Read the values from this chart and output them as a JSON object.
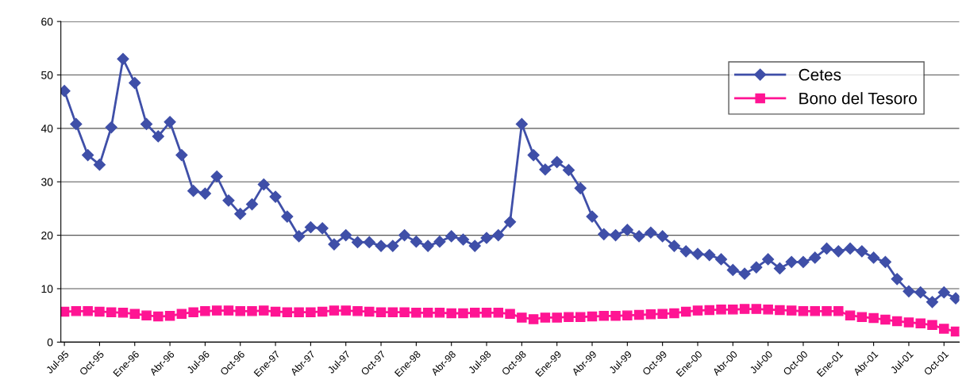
{
  "chart_data": {
    "type": "line",
    "categories": [
      "Jul-95",
      null,
      null,
      "Oct-95",
      null,
      null,
      "Ene-96",
      null,
      null,
      "Abr-96",
      null,
      null,
      "Jul-96",
      null,
      null,
      "Oct-96",
      null,
      null,
      "Ene-97",
      null,
      null,
      "Abr-97",
      null,
      null,
      "Jul-97",
      null,
      null,
      "Oct-97",
      null,
      null,
      "Ene-98",
      null,
      null,
      "Abr-98",
      null,
      null,
      "Jul-98",
      null,
      null,
      "Oct-98",
      null,
      null,
      "Ene-99",
      null,
      null,
      "Abr-99",
      null,
      null,
      "Jul-99",
      null,
      null,
      "Oct-99",
      null,
      null,
      "Ene-00",
      null,
      null,
      "Abr-00",
      null,
      null,
      "Jul-00",
      null,
      null,
      "Oct-00",
      null,
      null,
      "Ene-01",
      null,
      null,
      "Abr-01",
      null,
      null,
      "Jul-01",
      null,
      null,
      "Oct-01",
      null
    ],
    "series": [
      {
        "name": "Cetes",
        "color": "#3f4fa8",
        "marker": "diamond",
        "values": [
          47,
          40.8,
          35,
          33.2,
          40.2,
          53,
          48.5,
          40.8,
          38.5,
          41.2,
          35,
          28.3,
          27.8,
          31,
          26.5,
          24,
          25.8,
          29.5,
          27.2,
          23.5,
          19.8,
          21.5,
          21.3,
          18.3,
          20,
          18.7,
          18.7,
          18,
          18,
          20,
          18.8,
          18,
          18.8,
          19.8,
          19.2,
          18,
          19.5,
          20,
          22.5,
          40.8,
          35,
          32.3,
          33.7,
          32.2,
          28.8,
          23.5,
          20.2,
          20,
          21,
          19.8,
          20.5,
          19.8,
          18,
          17,
          16.5,
          16.3,
          15.5,
          13.5,
          12.8,
          14,
          15.5,
          13.8,
          15,
          15,
          15.8,
          17.5,
          17,
          17.5,
          17,
          15.8,
          15,
          11.8,
          9.5,
          9.3,
          7.5,
          9.3,
          8.2
        ]
      },
      {
        "name": "Bono del Tesoro",
        "color": "#ff1493",
        "marker": "square",
        "values": [
          5.7,
          5.8,
          5.8,
          5.7,
          5.6,
          5.5,
          5.3,
          5.0,
          4.8,
          4.9,
          5.3,
          5.6,
          5.8,
          5.9,
          5.9,
          5.8,
          5.8,
          5.9,
          5.7,
          5.6,
          5.6,
          5.6,
          5.7,
          5.9,
          5.9,
          5.8,
          5.7,
          5.6,
          5.6,
          5.6,
          5.5,
          5.5,
          5.5,
          5.4,
          5.4,
          5.5,
          5.5,
          5.5,
          5.3,
          4.6,
          4.3,
          4.6,
          4.6,
          4.7,
          4.7,
          4.8,
          4.9,
          4.9,
          5.0,
          5.1,
          5.2,
          5.3,
          5.4,
          5.7,
          5.9,
          6.0,
          6.1,
          6.1,
          6.2,
          6.2,
          6.1,
          6.0,
          5.9,
          5.8,
          5.8,
          5.8,
          5.8,
          5.0,
          4.7,
          4.5,
          4.2,
          3.9,
          3.7,
          3.5,
          3.2,
          2.5,
          2.0
        ]
      }
    ],
    "ylim": [
      0,
      60
    ],
    "yticks": [
      0,
      10,
      20,
      30,
      40,
      50,
      60
    ],
    "grid": "y",
    "legend": "top right",
    "line_style": "solid"
  }
}
